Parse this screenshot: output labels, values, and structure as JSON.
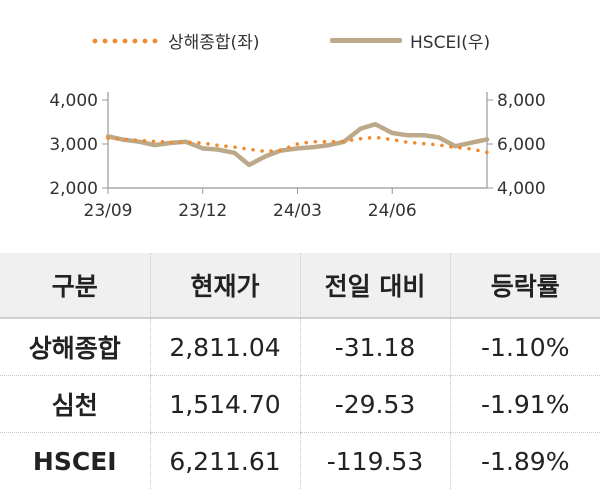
{
  "chart_data": {
    "type": "line",
    "legend_position": "top",
    "grid": false,
    "x_ticks": [
      "23/09",
      "23/12",
      "24/03",
      "24/06"
    ],
    "y_left": {
      "ticks": [
        "2,000",
        "3,000",
        "4,000"
      ],
      "range": [
        2000,
        4000
      ]
    },
    "y_right": {
      "ticks": [
        "4,000",
        "6,000",
        "8,000"
      ],
      "range": [
        4000,
        8000
      ]
    },
    "series": [
      {
        "name": "상해종합(좌)",
        "axis": "left",
        "color": "#f28a2e",
        "style": "dotted",
        "x": [
          "23/09/01",
          "23/09/15",
          "23/10/01",
          "23/10/15",
          "23/11/01",
          "23/11/15",
          "23/12/01",
          "23/12/15",
          "24/01/01",
          "24/01/15",
          "24/02/01",
          "24/02/15",
          "24/03/01",
          "24/03/15",
          "24/04/01",
          "24/04/15",
          "24/05/01",
          "24/05/15",
          "24/06/01",
          "24/06/15",
          "24/07/01",
          "24/07/15",
          "24/08/01",
          "24/08/15",
          "24/09/01"
        ],
        "values": [
          3130,
          3110,
          3080,
          3060,
          3040,
          3040,
          3020,
          2970,
          2930,
          2880,
          2830,
          2860,
          3000,
          3050,
          3050,
          3060,
          3120,
          3150,
          3100,
          3040,
          3010,
          2980,
          2920,
          2890,
          2811
        ]
      },
      {
        "name": "HSCEI(우)",
        "axis": "right",
        "color": "#bba98a",
        "style": "solid",
        "x": [
          "23/09/01",
          "23/09/15",
          "23/10/01",
          "23/10/15",
          "23/11/01",
          "23/11/15",
          "23/12/01",
          "23/12/15",
          "24/01/01",
          "24/01/15",
          "24/02/01",
          "24/02/15",
          "24/03/01",
          "24/03/15",
          "24/04/01",
          "24/04/15",
          "24/05/01",
          "24/05/15",
          "24/06/01",
          "24/06/15",
          "24/07/01",
          "24/07/15",
          "24/08/01",
          "24/08/15",
          "24/09/01"
        ],
        "values": [
          6350,
          6200,
          6100,
          5950,
          6050,
          6100,
          5800,
          5750,
          5600,
          5050,
          5450,
          5700,
          5800,
          5850,
          5950,
          6100,
          6700,
          6900,
          6500,
          6400,
          6400,
          6300,
          5900,
          6050,
          6211
        ]
      }
    ]
  },
  "table": {
    "headers": [
      "구분",
      "현재가",
      "전일 대비",
      "등락률"
    ],
    "rows": [
      [
        "상해종합",
        "2,811.04",
        "-31.18",
        "-1.10%"
      ],
      [
        "심천",
        "1,514.70",
        "-29.53",
        "-1.91%"
      ],
      [
        "HSCEI",
        "6,211.61",
        "-119.53",
        "-1.89%"
      ]
    ]
  }
}
